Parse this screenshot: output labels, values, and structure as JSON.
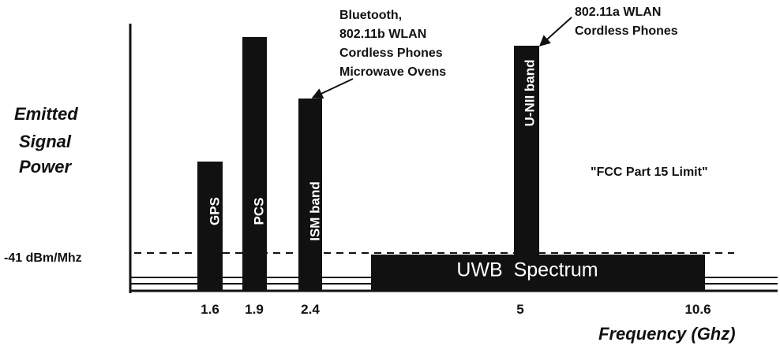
{
  "y_axis_label": [
    "Emitted",
    "Signal",
    "Power"
  ],
  "limit_label": "-41 dBm/Mhz",
  "bands": [
    {
      "label": "GPS"
    },
    {
      "label": "PCS"
    },
    {
      "label": "ISM band"
    },
    {
      "label": "U-NII band"
    }
  ],
  "uwb_label": "UWB  Spectrum",
  "annotations": [
    {
      "lines": [
        "Bluetooth,",
        "802.11b WLAN",
        "Cordless Phones",
        "Microwave Ovens"
      ]
    },
    {
      "lines": [
        "802.11a WLAN",
        "Cordless Phones"
      ]
    }
  ],
  "fcc_label": "\"FCC Part 15 Limit\"",
  "x_ticks": [
    1.6,
    1.9,
    2.4,
    5,
    10.6
  ],
  "x_axis_label": "Frequency (Ghz)"
}
